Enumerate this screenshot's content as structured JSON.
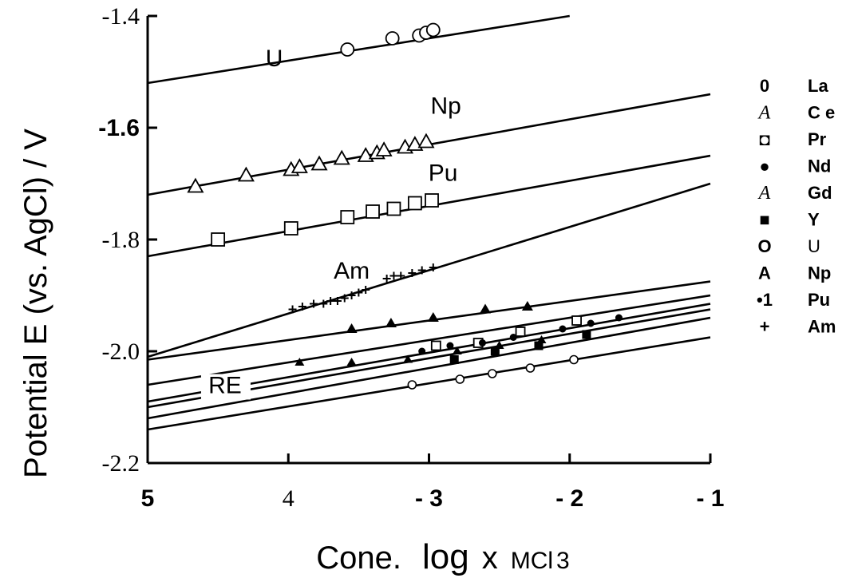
{
  "chart_data": {
    "type": "scatter",
    "xlabel": {
      "prefix": "Cone.",
      "log": "log",
      "x": "x",
      "var": "MCl",
      "sub": "3"
    },
    "ylabel": "Potential E (vs. AgCl) / V",
    "xlim": [
      -5,
      -1
    ],
    "ylim": [
      -2.2,
      -1.4
    ],
    "x_ticks": [
      {
        "value": -5,
        "label": "5",
        "style": "bold"
      },
      {
        "value": -4,
        "label": "4",
        "style": "serif"
      },
      {
        "value": -3,
        "label": "- 3",
        "style": "bold"
      },
      {
        "value": -2,
        "label": "- 2",
        "style": "bold"
      },
      {
        "value": -1,
        "label": "- 1",
        "style": "bold"
      }
    ],
    "y_ticks": [
      {
        "value": -1.4,
        "label": "-1.4",
        "style": "serif"
      },
      {
        "value": -1.6,
        "label": "-1.6",
        "style": "bold"
      },
      {
        "value": -1.8,
        "label": "-1.8",
        "style": "serif"
      },
      {
        "value": -2.0,
        "label": "-2.0",
        "style": "serif"
      },
      {
        "value": -2.2,
        "label": "-2.2",
        "style": "serif"
      }
    ],
    "grid": false,
    "legend_position": "right",
    "fit_lines": [
      {
        "series": "U",
        "x": [
          -5,
          -2.0
        ],
        "y": [
          -1.52,
          -1.4
        ]
      },
      {
        "series": "Np",
        "x": [
          -5,
          -1
        ],
        "y": [
          -1.72,
          -1.54
        ]
      },
      {
        "series": "Pu",
        "x": [
          -5,
          -1
        ],
        "y": [
          -1.83,
          -1.65
        ]
      },
      {
        "series": "Am",
        "x": [
          -5,
          -1
        ],
        "y": [
          -2.01,
          -1.7
        ]
      },
      {
        "series": "Gd",
        "x": [
          -5,
          -1
        ],
        "y": [
          -2.015,
          -1.875
        ]
      },
      {
        "series": "Ce",
        "x": [
          -5,
          -1
        ],
        "y": [
          -2.06,
          -1.9
        ]
      },
      {
        "series": "Pr",
        "x": [
          -5,
          -1
        ],
        "y": [
          -2.09,
          -1.915
        ]
      },
      {
        "series": "Nd",
        "x": [
          -5,
          -1
        ],
        "y": [
          -2.1,
          -1.925
        ]
      },
      {
        "series": "Y",
        "x": [
          -5,
          -1
        ],
        "y": [
          -2.12,
          -1.94
        ]
      },
      {
        "series": "La",
        "x": [
          -5,
          -1
        ],
        "y": [
          -2.14,
          -1.975
        ]
      }
    ],
    "series": [
      {
        "name": "U",
        "marker": "circle-large",
        "x": [
          -3.58,
          -3.26,
          -3.07,
          -3.02,
          -2.97
        ],
        "y": [
          -1.46,
          -1.44,
          -1.435,
          -1.43,
          -1.425
        ]
      },
      {
        "name": "Np",
        "marker": "triangle-open",
        "x": [
          -4.66,
          -4.3,
          -3.98,
          -3.92,
          -3.78,
          -3.62,
          -3.45,
          -3.37,
          -3.32,
          -3.17,
          -3.1,
          -3.02
        ],
        "y": [
          -1.705,
          -1.685,
          -1.675,
          -1.67,
          -1.665,
          -1.655,
          -1.65,
          -1.645,
          -1.64,
          -1.635,
          -1.63,
          -1.625
        ]
      },
      {
        "name": "Pr",
        "marker": "square-open",
        "x": [
          -4.5,
          -3.98,
          -3.58,
          -3.4,
          -3.25,
          -3.1,
          -2.98
        ],
        "y": [
          -1.8,
          -1.78,
          -1.76,
          -1.75,
          -1.745,
          -1.735,
          -1.73
        ]
      },
      {
        "name": "Am",
        "marker": "plus",
        "x": [
          -3.97,
          -3.9,
          -3.82,
          -3.75,
          -3.7,
          -3.65,
          -3.6,
          -3.55,
          -3.5,
          -3.45,
          -3.3,
          -3.25,
          -3.2,
          -3.12,
          -3.05,
          -2.97
        ],
        "y": [
          -1.925,
          -1.92,
          -1.915,
          -1.915,
          -1.91,
          -1.91,
          -1.905,
          -1.9,
          -1.895,
          -1.89,
          -1.87,
          -1.865,
          -1.865,
          -1.86,
          -1.855,
          -1.85
        ]
      },
      {
        "name": "Gd",
        "marker": "triangle-filled",
        "x": [
          -3.55,
          -3.27,
          -2.97,
          -2.6,
          -2.3
        ],
        "y": [
          -1.96,
          -1.95,
          -1.94,
          -1.925,
          -1.92
        ]
      },
      {
        "name": "Ce",
        "marker": "triangle-filled-small",
        "x": [
          -3.92,
          -3.55,
          -3.15,
          -2.8,
          -2.5,
          -2.2
        ],
        "y": [
          -2.02,
          -2.02,
          -2.015,
          -2.0,
          -1.99,
          -1.98
        ]
      },
      {
        "name": "Pr",
        "marker": "square-open-small",
        "x": [
          -2.95,
          -2.65,
          -2.35,
          -1.95
        ],
        "y": [
          -1.99,
          -1.985,
          -1.965,
          -1.945
        ]
      },
      {
        "name": "Nd",
        "marker": "dot",
        "x": [
          -3.05,
          -2.85,
          -2.62,
          -2.4,
          -2.05,
          -1.85,
          -1.65
        ],
        "y": [
          -2.0,
          -1.99,
          -1.985,
          -1.975,
          -1.96,
          -1.95,
          -1.94
        ]
      },
      {
        "name": "Y",
        "marker": "square-filled",
        "x": [
          -2.82,
          -2.53,
          -2.22,
          -1.88
        ],
        "y": [
          -2.015,
          -2.0,
          -1.99,
          -1.97
        ]
      },
      {
        "name": "La",
        "marker": "circle-small",
        "x": [
          -3.12,
          -2.78,
          -2.55,
          -2.28,
          -1.97
        ],
        "y": [
          -2.06,
          -2.05,
          -2.04,
          -2.03,
          -2.015
        ]
      }
    ],
    "annotations": [
      {
        "text": "U",
        "x": -4.1,
        "y": -1.49
      },
      {
        "text": "Np",
        "x": -2.88,
        "y": -1.575
      },
      {
        "text": "Pu",
        "x": -2.9,
        "y": -1.695
      },
      {
        "text": "Am",
        "x": -3.55,
        "y": -1.87
      },
      {
        "text": "RE",
        "x": -4.45,
        "y": -2.075
      }
    ]
  },
  "legend": [
    {
      "symbol": "0",
      "label": "La",
      "sym_style": "bold",
      "lbl_style": "bold"
    },
    {
      "symbol": "A",
      "label": "C e",
      "sym_style": "italic",
      "lbl_style": "bold"
    },
    {
      "symbol": "◘",
      "label": "Pr",
      "sym_style": "bold",
      "lbl_style": "bold"
    },
    {
      "symbol": "●",
      "label": "Nd",
      "sym_style": "bold",
      "lbl_style": "bold"
    },
    {
      "symbol": "A",
      "label": "Gd",
      "sym_style": "italic",
      "lbl_style": "bold"
    },
    {
      "symbol": "■",
      "label": "Y",
      "sym_style": "bold",
      "lbl_style": "bold"
    },
    {
      "symbol": "O",
      "label": "U",
      "sym_style": "bold",
      "lbl_style": "plain"
    },
    {
      "symbol": "A",
      "label": "Np",
      "sym_style": "bold",
      "lbl_style": "bold"
    },
    {
      "symbol": "•1",
      "label": "Pu",
      "sym_style": "bold",
      "lbl_style": "bold"
    },
    {
      "symbol": "+",
      "label": "Am",
      "sym_style": "bold",
      "lbl_style": "bold"
    }
  ]
}
